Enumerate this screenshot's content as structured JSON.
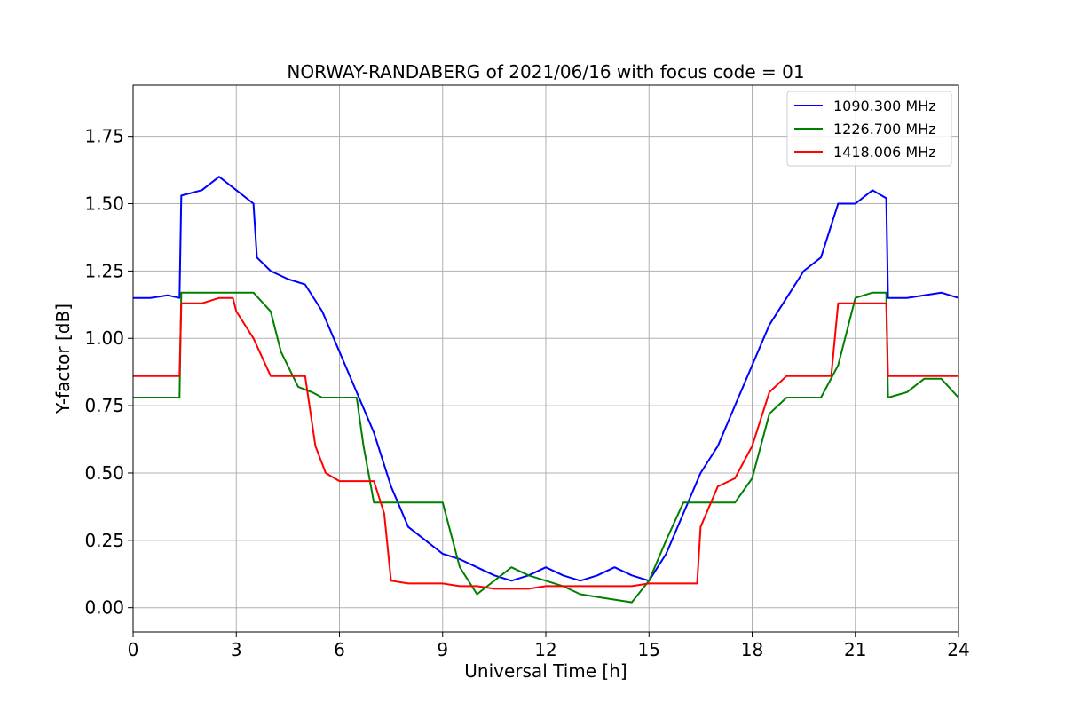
{
  "chart_data": {
    "type": "line",
    "title": "NORWAY-RANDABERG of 2021/06/16 with focus code = 01",
    "xlabel": "Universal Time [h]",
    "ylabel": "Y-factor [dB]",
    "xlim": [
      0,
      24
    ],
    "ylim": [
      -0.09,
      1.94
    ],
    "xticks": [
      0,
      3,
      6,
      9,
      12,
      15,
      18,
      21,
      24
    ],
    "xtick_labels": [
      "0",
      "3",
      "6",
      "9",
      "12",
      "15",
      "18",
      "21",
      "24"
    ],
    "yticks": [
      0,
      0.25,
      0.5,
      0.75,
      1.0,
      1.25,
      1.5,
      1.75
    ],
    "ytick_labels": [
      "0.00",
      "0.25",
      "0.50",
      "0.75",
      "1.00",
      "1.25",
      "1.50",
      "1.75"
    ],
    "grid": true,
    "legend_position": "top-right",
    "series": [
      {
        "name": "1090.300 MHz",
        "color": "#0000ff",
        "x": [
          0,
          0.5,
          1.0,
          1.35,
          1.4,
          2.0,
          2.5,
          3.0,
          3.5,
          3.6,
          4.0,
          4.5,
          5.0,
          5.5,
          6.0,
          6.5,
          7.0,
          7.5,
          8.0,
          8.5,
          9.0,
          9.5,
          10.0,
          10.5,
          11.0,
          11.5,
          12.0,
          12.5,
          13.0,
          13.5,
          14.0,
          14.5,
          15.0,
          15.5,
          16.0,
          16.5,
          17.0,
          17.5,
          18.0,
          18.5,
          19.0,
          19.5,
          20.0,
          20.5,
          21.0,
          21.5,
          21.9,
          21.95,
          22.5,
          23.0,
          23.5,
          24.0
        ],
        "y": [
          1.15,
          1.15,
          1.16,
          1.15,
          1.53,
          1.55,
          1.6,
          1.55,
          1.5,
          1.3,
          1.25,
          1.22,
          1.2,
          1.1,
          0.95,
          0.8,
          0.65,
          0.45,
          0.3,
          0.25,
          0.2,
          0.18,
          0.15,
          0.12,
          0.1,
          0.12,
          0.15,
          0.12,
          0.1,
          0.12,
          0.15,
          0.12,
          0.1,
          0.2,
          0.35,
          0.5,
          0.6,
          0.75,
          0.9,
          1.05,
          1.15,
          1.25,
          1.3,
          1.5,
          1.5,
          1.55,
          1.52,
          1.15,
          1.15,
          1.16,
          1.17,
          1.15
        ]
      },
      {
        "name": "1226.700 MHz",
        "color": "#008000",
        "x": [
          0,
          0.5,
          1.0,
          1.35,
          1.4,
          2.0,
          2.5,
          3.0,
          3.5,
          4.0,
          4.3,
          4.8,
          5.2,
          5.5,
          6.0,
          6.5,
          6.7,
          7.0,
          7.5,
          8.0,
          8.5,
          9.0,
          9.5,
          10.0,
          10.5,
          11.0,
          11.5,
          12.0,
          12.5,
          13.0,
          13.5,
          14.0,
          14.5,
          15.0,
          15.5,
          16.0,
          16.5,
          17.0,
          17.5,
          18.0,
          18.5,
          19.0,
          19.5,
          20.0,
          20.5,
          21.0,
          21.5,
          21.9,
          21.95,
          22.5,
          23.0,
          23.5,
          24.0
        ],
        "y": [
          0.78,
          0.78,
          0.78,
          0.78,
          1.17,
          1.17,
          1.17,
          1.17,
          1.17,
          1.1,
          0.95,
          0.82,
          0.8,
          0.78,
          0.78,
          0.78,
          0.6,
          0.39,
          0.39,
          0.39,
          0.39,
          0.39,
          0.15,
          0.05,
          0.1,
          0.15,
          0.12,
          0.1,
          0.08,
          0.05,
          0.04,
          0.03,
          0.02,
          0.1,
          0.25,
          0.39,
          0.39,
          0.39,
          0.39,
          0.48,
          0.72,
          0.78,
          0.78,
          0.78,
          0.9,
          1.15,
          1.17,
          1.17,
          0.78,
          0.8,
          0.85,
          0.85,
          0.78
        ]
      },
      {
        "name": "1418.006 MHz",
        "color": "#ff0000",
        "x": [
          0,
          0.5,
          1.0,
          1.35,
          1.4,
          2.0,
          2.5,
          2.9,
          3.0,
          3.5,
          4.0,
          4.5,
          5.0,
          5.3,
          5.6,
          6.0,
          6.5,
          7.0,
          7.3,
          7.5,
          8.0,
          8.5,
          9.0,
          9.5,
          10.0,
          10.5,
          11.0,
          11.5,
          12.0,
          12.5,
          13.0,
          13.5,
          14.0,
          14.5,
          15.0,
          15.5,
          16.0,
          16.4,
          16.5,
          17.0,
          17.5,
          18.0,
          18.5,
          19.0,
          19.5,
          20.0,
          20.3,
          20.5,
          21.0,
          21.5,
          21.9,
          21.95,
          22.5,
          23.0,
          23.5,
          24.0
        ],
        "y": [
          0.86,
          0.86,
          0.86,
          0.86,
          1.13,
          1.13,
          1.15,
          1.15,
          1.1,
          1.0,
          0.86,
          0.86,
          0.86,
          0.6,
          0.5,
          0.47,
          0.47,
          0.47,
          0.35,
          0.1,
          0.09,
          0.09,
          0.09,
          0.08,
          0.08,
          0.07,
          0.07,
          0.07,
          0.08,
          0.08,
          0.08,
          0.08,
          0.08,
          0.08,
          0.09,
          0.09,
          0.09,
          0.09,
          0.3,
          0.45,
          0.48,
          0.6,
          0.8,
          0.86,
          0.86,
          0.86,
          0.86,
          1.13,
          1.13,
          1.13,
          1.13,
          0.86,
          0.86,
          0.86,
          0.86,
          0.86
        ]
      }
    ]
  }
}
